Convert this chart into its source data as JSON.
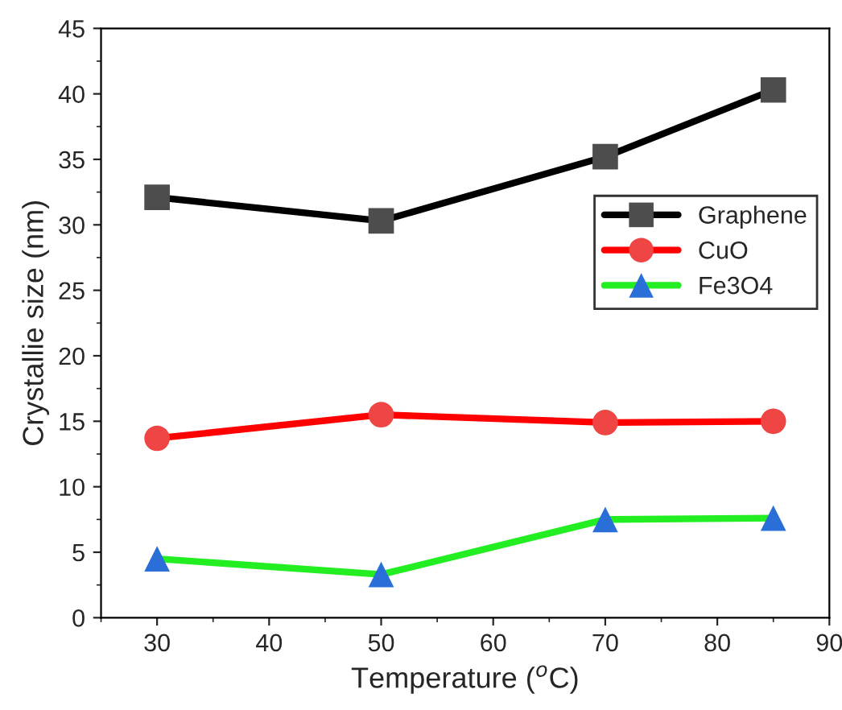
{
  "chart_data": {
    "type": "line",
    "xlabel": "Temperature ($^{o}$C)",
    "ylabel": "Crystallie size (nm)",
    "x": [
      30,
      50,
      70,
      85
    ],
    "series": [
      {
        "name": "Graphene",
        "color": "#000000",
        "colors": [
          "#4d4d4d",
          "#4d4d4d",
          "#4d4d4d",
          "#4d4d4d"
        ],
        "marker": "square",
        "values": [
          32.1,
          30.3,
          35.2,
          40.3
        ]
      },
      {
        "name": "CuO",
        "color": "#ff0000",
        "colors": [
          "#f04545",
          "#f04545",
          "#f04545",
          "#f04545"
        ],
        "marker": "circle",
        "values": [
          13.7,
          15.5,
          14.9,
          15.0
        ]
      },
      {
        "name": "Fe3O4",
        "color": "#22ee22",
        "colors": [
          "#2a6fd8",
          "#2a6fd8",
          "#2a6fd8",
          "#2a6fd8"
        ],
        "marker": "triangle",
        "values": [
          4.5,
          3.3,
          7.5,
          7.6
        ]
      }
    ],
    "xlim": [
      25,
      90
    ],
    "xticks": [
      30,
      40,
      50,
      60,
      70,
      80,
      90
    ],
    "ylim": [
      0,
      45
    ],
    "yticks": [
      0,
      5,
      10,
      15,
      20,
      25,
      30,
      35,
      40,
      45
    ],
    "grid": false,
    "legend": "right",
    "line_style": "solid"
  }
}
